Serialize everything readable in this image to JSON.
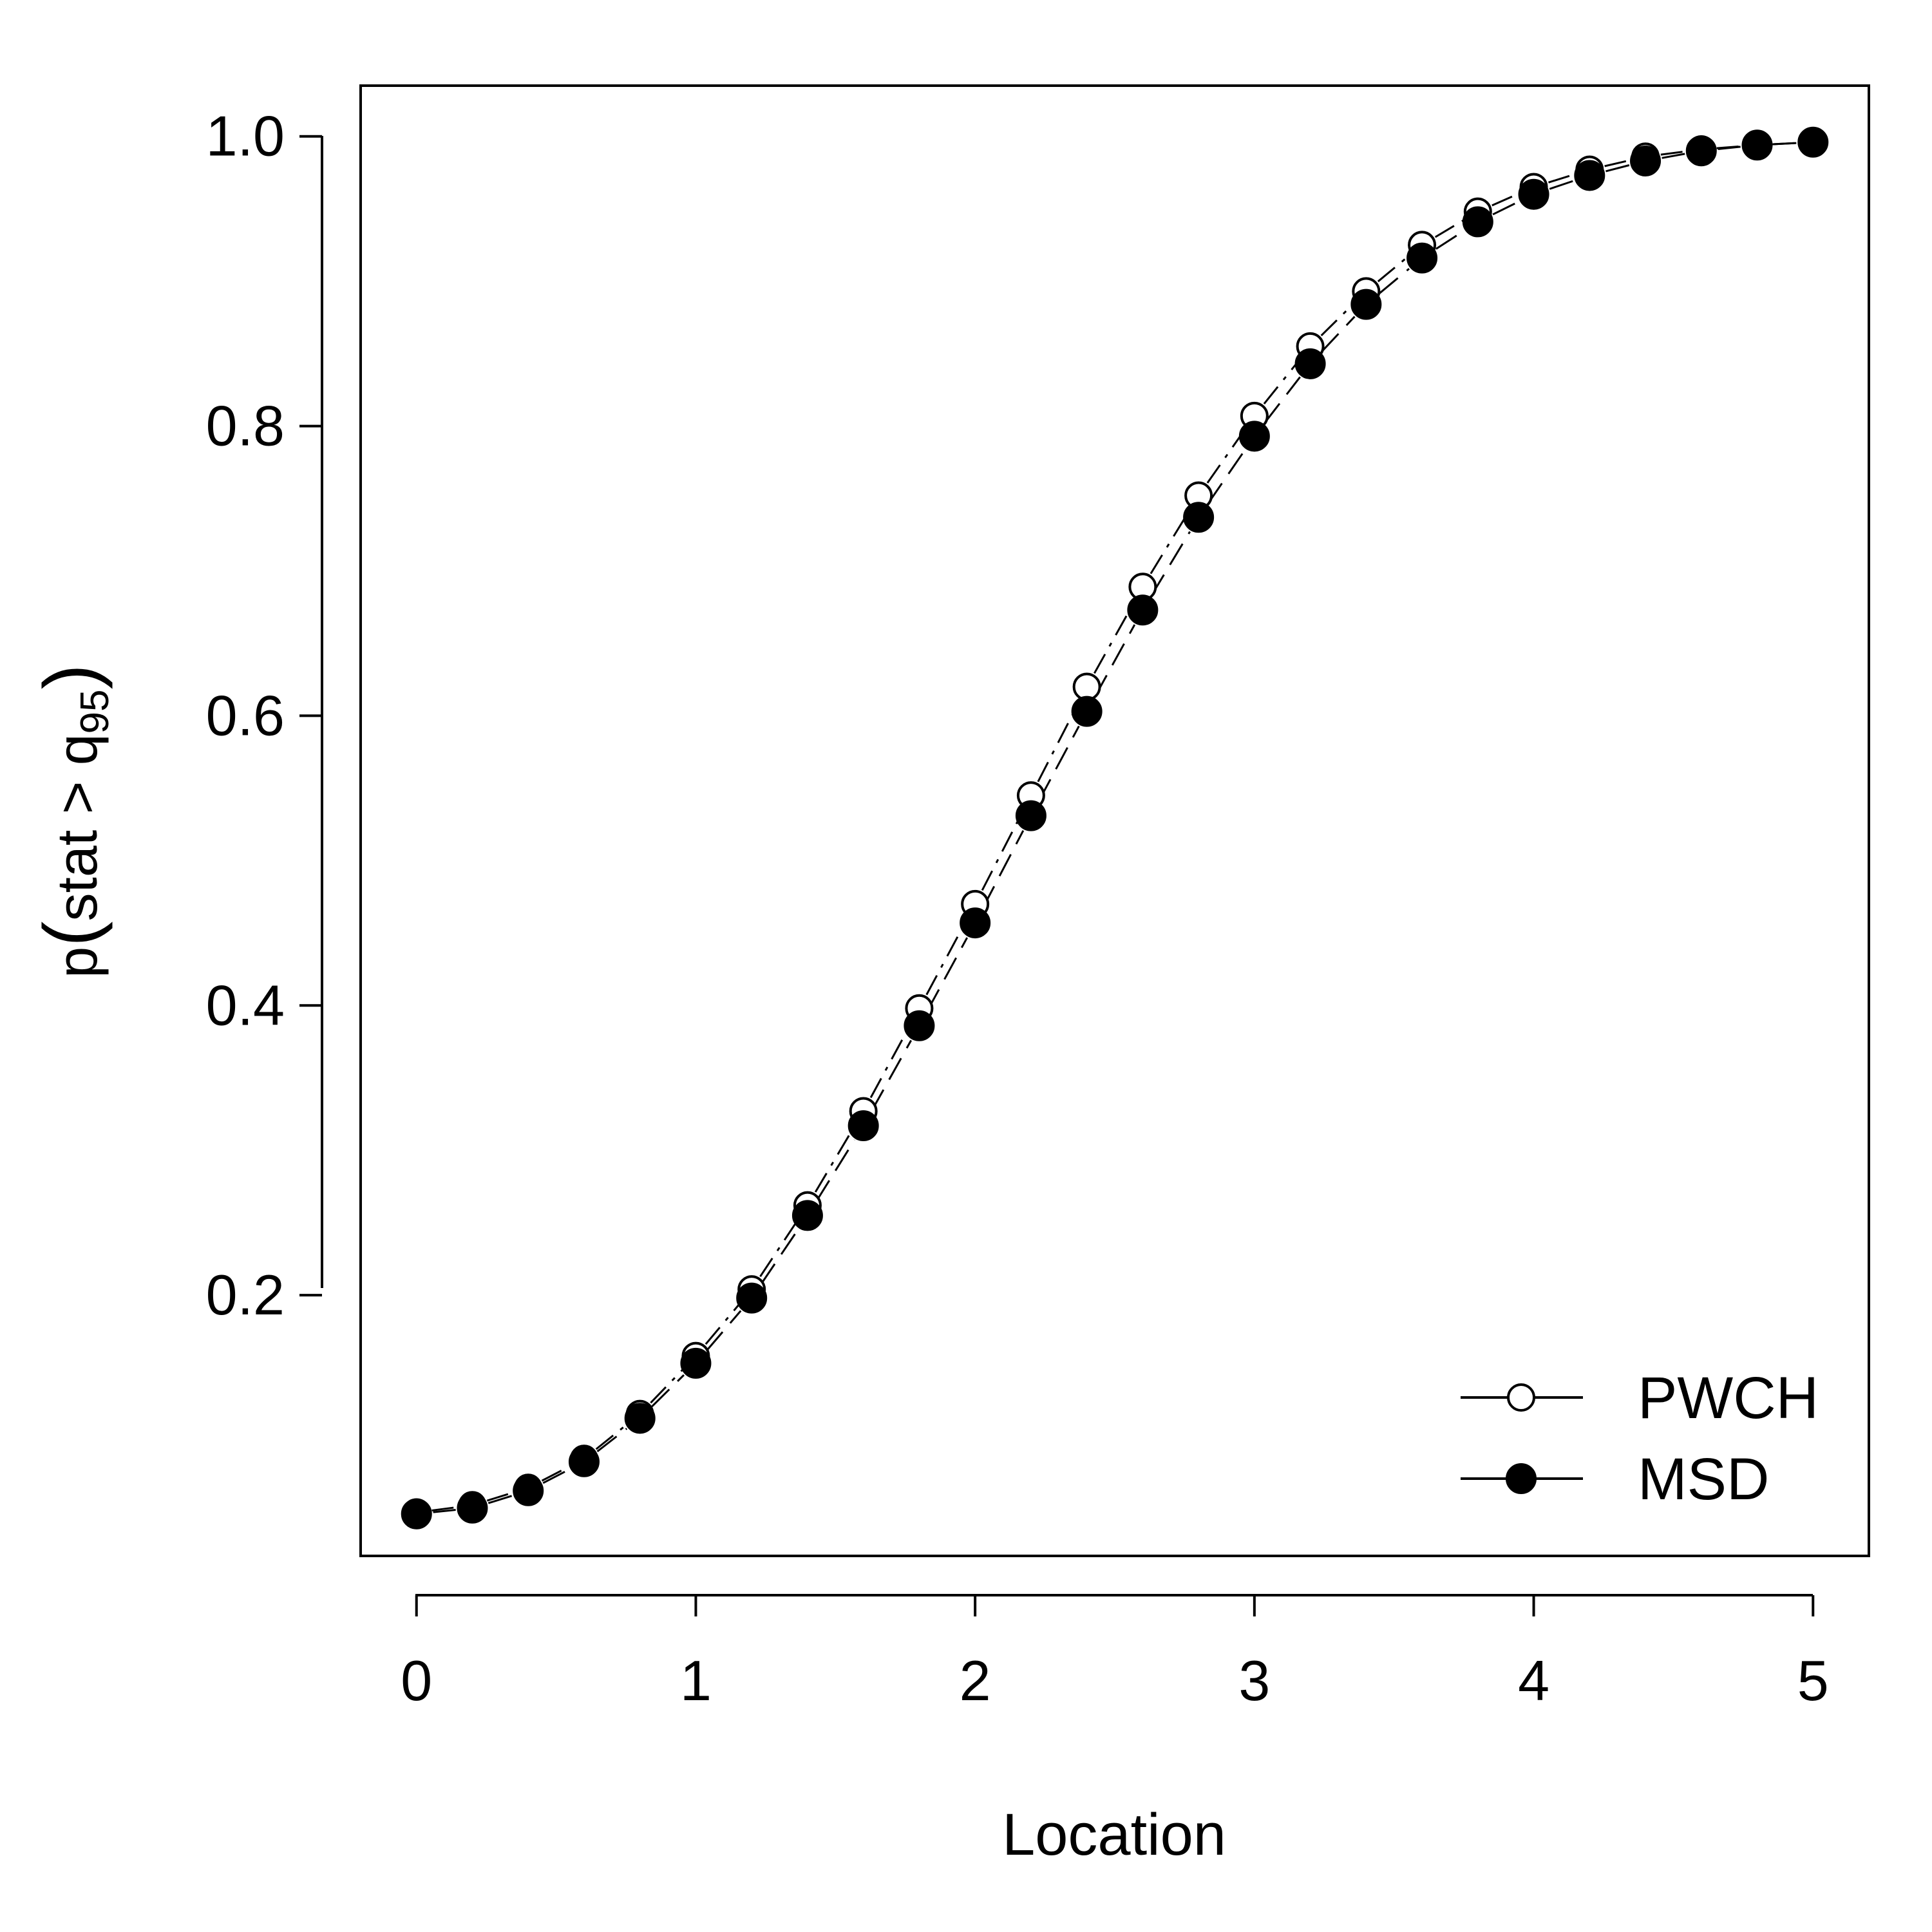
{
  "chart_data": {
    "type": "line",
    "title": "",
    "xlabel": "Location",
    "ylabel": {
      "prefix": "p",
      "inner": "stat > q",
      "subscript": "95"
    },
    "xlim": [
      -0.2,
      5.2
    ],
    "ylim": [
      0.02,
      1.035
    ],
    "xticks": [
      0,
      1,
      2,
      3,
      4,
      5
    ],
    "xtick_labels": [
      "0",
      "1",
      "2",
      "3",
      "4",
      "5"
    ],
    "yticks": [
      0.2,
      0.4,
      0.6,
      0.8,
      1.0
    ],
    "ytick_labels": [
      "0.2",
      "0.4",
      "0.6",
      "0.8",
      "1.0"
    ],
    "grid": false,
    "legend_position": "bottom-right",
    "x": [
      0,
      0.2,
      0.4,
      0.6,
      0.8,
      1.0,
      1.2,
      1.4,
      1.6,
      1.8,
      2.0,
      2.2,
      2.4,
      2.6,
      2.8,
      3.0,
      3.2,
      3.4,
      3.6,
      3.8,
      4.0,
      4.2,
      4.4,
      4.6,
      4.8,
      5.0
    ],
    "series": [
      {
        "name": "PWCH",
        "marker": "open-circle",
        "line": "dotted-dashed",
        "color": "#000000",
        "values": [
          0.05,
          0.055,
          0.067,
          0.087,
          0.118,
          0.158,
          0.204,
          0.262,
          0.327,
          0.398,
          0.47,
          0.545,
          0.62,
          0.689,
          0.752,
          0.807,
          0.855,
          0.893,
          0.925,
          0.948,
          0.965,
          0.977,
          0.986,
          0.991,
          0.994,
          0.996
        ]
      },
      {
        "name": "MSD",
        "marker": "filled-circle",
        "line": "dashed",
        "color": "#000000",
        "values": [
          0.049,
          0.053,
          0.065,
          0.085,
          0.115,
          0.153,
          0.198,
          0.255,
          0.317,
          0.386,
          0.457,
          0.531,
          0.603,
          0.673,
          0.737,
          0.793,
          0.843,
          0.884,
          0.916,
          0.941,
          0.96,
          0.973,
          0.983,
          0.99,
          0.994,
          0.996
        ]
      }
    ]
  }
}
